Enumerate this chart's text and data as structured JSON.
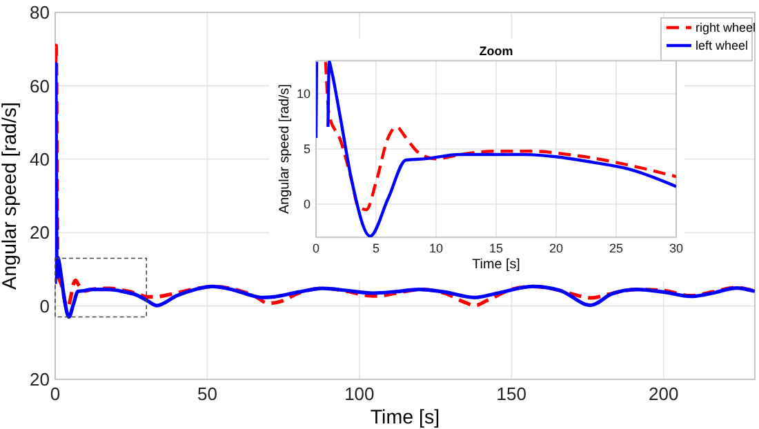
{
  "chart_data": [
    {
      "type": "line",
      "xlabel": "Time [s]",
      "ylabel": "Angular speed [rad/s]",
      "xlim": [
        0,
        230
      ],
      "ylim": [
        -20,
        80
      ],
      "xticks": [
        0,
        50,
        100,
        150,
        200
      ],
      "yticks": [
        {
          "value": -20,
          "label": "20"
        },
        0,
        20,
        40,
        60,
        80
      ],
      "grid": true,
      "legend": "top right",
      "series": [
        {
          "name": "right wheel",
          "color": "#ff0000",
          "line_style": "dashed",
          "x": [
            0,
            0.3,
            0.8,
            1.1,
            2,
            3,
            3.5,
            4.2,
            5,
            6,
            6.7,
            7.5,
            8.5,
            10,
            12,
            15,
            18,
            21,
            24,
            27,
            30,
            33,
            38,
            45,
            52,
            60,
            66,
            70,
            74,
            80,
            88,
            96,
            103,
            106,
            112,
            120,
            128,
            134,
            138,
            142,
            150,
            157,
            165,
            172,
            176,
            182,
            191,
            200,
            209,
            216,
            224,
            230
          ],
          "values": [
            60,
            71,
            13,
            8,
            5.9,
            2,
            -0.2,
            -0.5,
            2,
            6,
            7,
            6,
            4.7,
            4.1,
            4.5,
            4.8,
            4.8,
            4.5,
            4,
            3.3,
            2.5,
            2.5,
            3.2,
            4.5,
            5.3,
            4.3,
            2.5,
            0.7,
            1.2,
            3.5,
            4.8,
            4,
            2.8,
            2.7,
            3.5,
            4.5,
            3.5,
            1.2,
            0.1,
            1.5,
            4.5,
            5.3,
            4.4,
            2.8,
            2.2,
            3.2,
            4.5,
            4.2,
            2.8,
            3.8,
            5,
            4
          ]
        },
        {
          "name": "left wheel",
          "color": "#0000ff",
          "line_style": "solid",
          "x": [
            0,
            0.2,
            0.5,
            0.8,
            1,
            1.2,
            2,
            3,
            4.5,
            6,
            7.5,
            9,
            12,
            17,
            20,
            23,
            26,
            30,
            33.3,
            40,
            46,
            51.5,
            58,
            64,
            68,
            72,
            80,
            87.8,
            96,
            104.5,
            112,
            119.7,
            128,
            137.8,
            146,
            157,
            166,
            176,
            183,
            191,
            200,
            209,
            216,
            224,
            230
          ],
          "values": [
            6,
            66,
            10,
            8,
            13,
            12.3,
            8,
            2,
            -3,
            0.5,
            4,
            4.1,
            4.5,
            4.5,
            4.3,
            3.8,
            3.2,
            1.6,
            0.1,
            2.8,
            4.5,
            5.3,
            4.5,
            3,
            2.3,
            2.5,
            3.8,
            4.8,
            4.2,
            3.5,
            3.9,
            4.5,
            3.8,
            2.3,
            3.6,
            5.3,
            4.2,
            0.2,
            3.3,
            4.5,
            3.8,
            2.6,
            3.5,
            4.9,
            4
          ]
        }
      ]
    },
    {
      "type": "line",
      "title": "Zoom",
      "xlabel": "Time [s]",
      "ylabel": "Angular speed [rad/s]",
      "xlim": [
        0,
        30
      ],
      "ylim": [
        -3,
        13
      ],
      "xticks": [
        0,
        5,
        10,
        15,
        20,
        25,
        30
      ],
      "yticks": [
        0,
        5,
        10
      ],
      "grid": true,
      "series": [
        {
          "color": "#ff0000",
          "line_style": "dashed",
          "x": [
            0.8,
            1.1,
            2,
            3,
            3.5,
            4.2,
            5,
            6,
            6.7,
            7.5,
            8.5,
            10,
            12,
            15,
            18,
            21,
            24,
            27,
            30
          ],
          "values": [
            12.9,
            8,
            5.9,
            2,
            -0.2,
            -0.5,
            2,
            6,
            7,
            6,
            4.7,
            4.1,
            4.5,
            4.8,
            4.8,
            4.5,
            4,
            3.3,
            2.5
          ]
        },
        {
          "color": "#0000ff",
          "line_style": "solid",
          "x": [
            0,
            0.05,
            0.5,
            1,
            1.1,
            1.25,
            2,
            3,
            4.5,
            6,
            7.5,
            9,
            12,
            17,
            20,
            23,
            26,
            30
          ],
          "values": [
            6,
            12.9,
            null,
            7,
            12.9,
            12.3,
            8,
            2,
            -2.9,
            0.5,
            4,
            4.1,
            4.5,
            4.5,
            4.3,
            3.8,
            3.2,
            1.6
          ]
        }
      ]
    }
  ]
}
